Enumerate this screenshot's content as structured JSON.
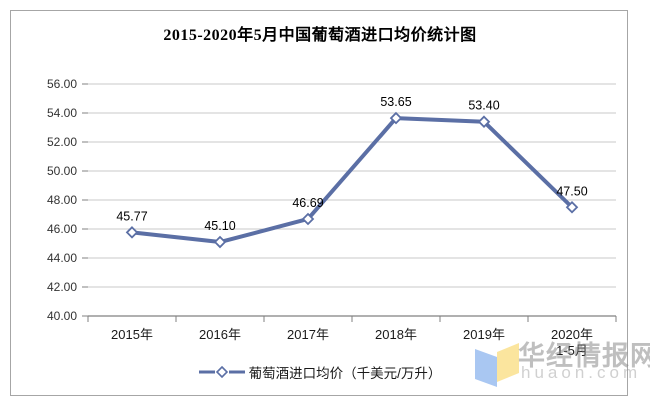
{
  "title": "2015-2020年5月中国葡萄酒进口均价统计图",
  "chart_data": {
    "type": "line",
    "categories": [
      "2015年",
      "2016年",
      "2017年",
      "2018年",
      "2019年",
      "2020年"
    ],
    "last_category_note": "1-5月",
    "series": [
      {
        "name": "葡萄酒进口均价（千美元/万升）",
        "values": [
          45.77,
          45.1,
          46.69,
          53.65,
          53.4,
          47.5
        ]
      }
    ],
    "ylim": [
      40,
      56
    ],
    "ytick_step": 2,
    "ytick_labels": [
      "40.00",
      "42.00",
      "44.00",
      "46.00",
      "48.00",
      "50.00",
      "52.00",
      "54.00",
      "56.00"
    ],
    "grid": true,
    "legend_position": "bottom",
    "line_color": "#5B6FA5",
    "marker_fill": "#FFFFFF",
    "grid_color": "#C9C9C9",
    "axis_color": "#808080",
    "label_color": "#333333"
  },
  "legend": {
    "label": "葡萄酒进口均价（千美元/万升）"
  },
  "watermark": {
    "name": "华经情报网",
    "domain": "huaon.com",
    "logo_blue": "#A9C7F2",
    "logo_yellow": "#FBE59E"
  }
}
